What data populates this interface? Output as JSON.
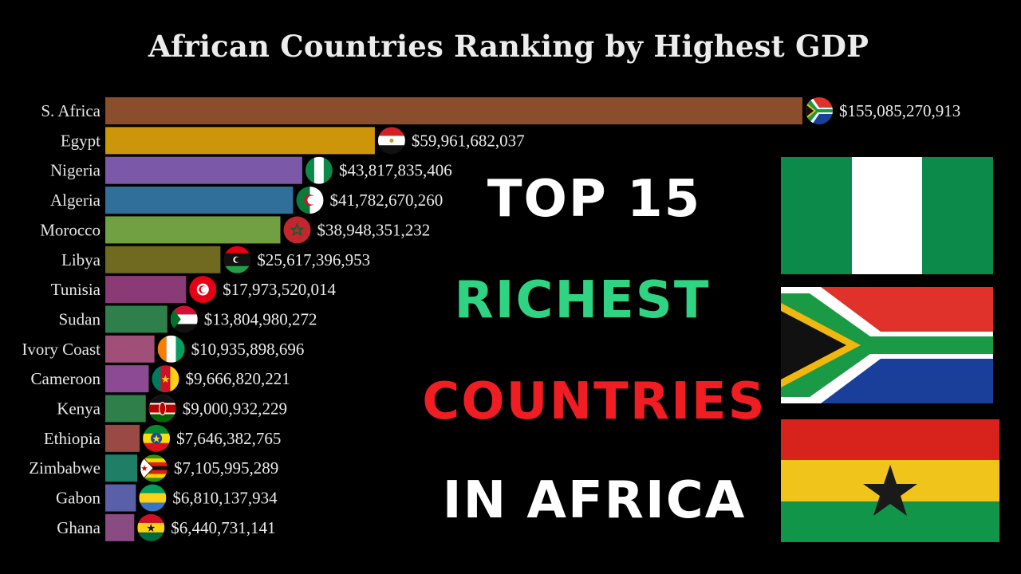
{
  "overlay": {
    "line1": "TOP 15",
    "line2": "RICHEST",
    "line3": "COUNTRIES",
    "line4": "IN AFRICA",
    "colors": {
      "line1": "#ffffff",
      "line2": "#2fd482",
      "line3": "#f01e22",
      "line4": "#ffffff"
    }
  },
  "side_flags": [
    "nigeria-flag",
    "south-africa-flag",
    "ghana-flag"
  ],
  "chart_data": {
    "type": "bar",
    "orientation": "horizontal",
    "title": "African Countries Ranking by Highest GDP",
    "categories": [
      "S. Africa",
      "Egypt",
      "Nigeria",
      "Algeria",
      "Morocco",
      "Libya",
      "Tunisia",
      "Sudan",
      "Ivory Coast",
      "Cameroon",
      "Kenya",
      "Ethiopia",
      "Zimbabwe",
      "Gabon",
      "Ghana"
    ],
    "values": [
      155085270913,
      59961682037,
      43817835406,
      41782670260,
      38948351232,
      25617396953,
      17973520014,
      13804980272,
      10935898696,
      9666820221,
      9000932229,
      7646382765,
      7105995289,
      6810137934,
      6440731141
    ],
    "value_labels": [
      "$155,085,270,913",
      "$59,961,682,037",
      "$43,817,835,406",
      "$41,782,670,260",
      "$38,948,351,232",
      "$25,617,396,953",
      "$17,973,520,014",
      "$13,804,980,272",
      "$10,935,898,696",
      "$9,666,820,221",
      "$9,000,932,229",
      "$7,646,382,765",
      "$7,105,995,289",
      "$6,810,137,934",
      "$6,440,731,141"
    ],
    "bar_colors": [
      "#8a4e2c",
      "#cc950a",
      "#7b58a8",
      "#2f6f9a",
      "#71a043",
      "#6f6a1f",
      "#8a3a74",
      "#2f7f4a",
      "#a04f78",
      "#8c4a94",
      "#2f7f4a",
      "#9a4a44",
      "#1f7f66",
      "#5a60a8",
      "#8a4a82"
    ],
    "flag_icons": [
      "south-africa-flag",
      "egypt-flag",
      "nigeria-flag",
      "algeria-flag",
      "morocco-flag",
      "libya-flag",
      "tunisia-flag",
      "sudan-flag",
      "ivory-coast-flag",
      "cameroon-flag",
      "kenya-flag",
      "ethiopia-flag",
      "zimbabwe-flag",
      "gabon-flag",
      "ghana-flag"
    ],
    "xlim": [
      0,
      155085270913
    ],
    "grid": false,
    "legend": "none"
  }
}
